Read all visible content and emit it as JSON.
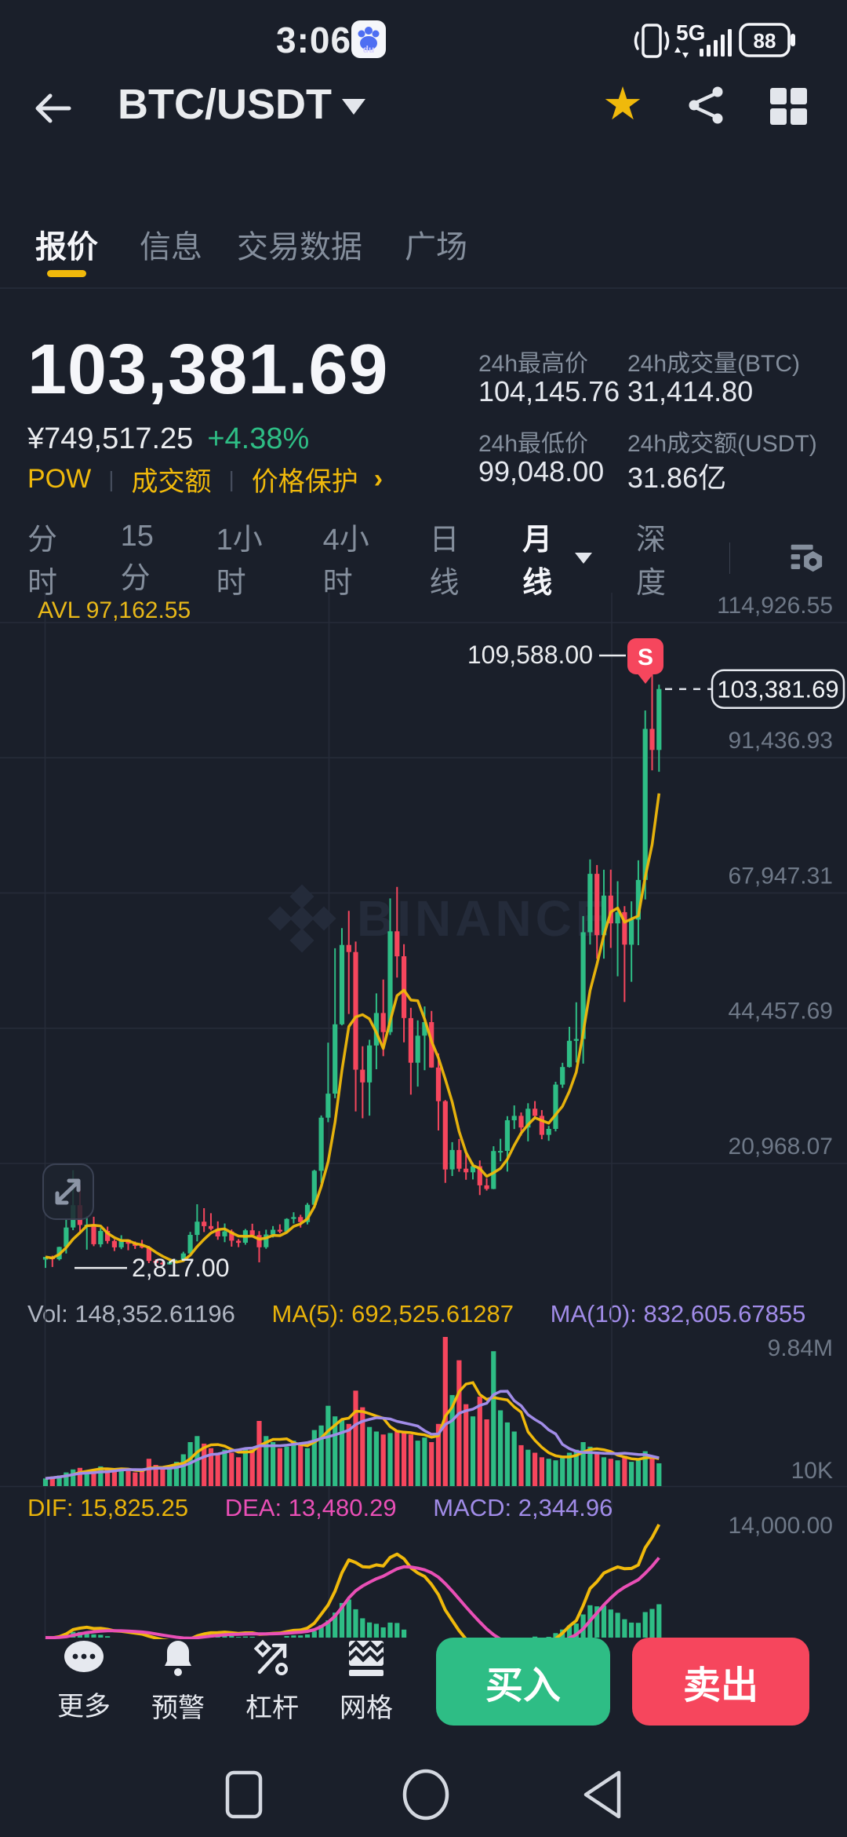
{
  "colors": {
    "background": "#1A1F2A",
    "up_green": "#2EBD85",
    "down_red": "#F6465D",
    "accent_gold": "#F0B90B",
    "text_primary": "#EAECEF",
    "text_secondary": "#848E9C",
    "vol_ma10_purple": "#A18CE8",
    "dea_magenta": "#E94FB6",
    "watermark": "#242B3A"
  },
  "status_bar": {
    "time": "3:06",
    "network": "5G",
    "battery": "88"
  },
  "header": {
    "pair": "BTC/USDT"
  },
  "tabs": {
    "items": [
      {
        "label": "报价"
      },
      {
        "label": "信息"
      },
      {
        "label": "交易数据"
      },
      {
        "label": "广场"
      }
    ]
  },
  "ticker": {
    "last": "103,381.69",
    "fiat": "¥749,517.25",
    "change": "+4.38%",
    "tags": [
      "POW",
      "成交额",
      "价格保护"
    ],
    "chevron": "›"
  },
  "stats": {
    "high_label": "24h最高价",
    "high": "104,145.76",
    "vol_btc_label": "24h成交量(BTC)",
    "vol_btc": "31,414.80",
    "low_label": "24h最低价",
    "low": "99,048.00",
    "vol_usdt_label": "24h成交额(USDT)",
    "vol_usdt": "31.86亿"
  },
  "periods": {
    "items": [
      "分时",
      "15分",
      "1小时",
      "4小时",
      "日线",
      "月线",
      "深度"
    ],
    "active": "月线"
  },
  "chart": {
    "avl": "AVL 97,162.55",
    "y_axis": [
      "114,926.55",
      "91,436.93",
      "67,947.31",
      "44,457.69",
      "20,968.07"
    ],
    "high_note": "109,588.00",
    "price_note": "103,381.69",
    "low_note": "2,817.00",
    "sell_marker": "S",
    "watermark": "BINANCE"
  },
  "volume_pane": {
    "legend": [
      "Vol: 148,352.61196",
      "MA(5): 692,525.61287",
      "MA(10): 832,605.67855"
    ],
    "y_max": "9.84M",
    "y_min": "10K"
  },
  "macd_pane": {
    "legend": [
      "DIF: 15,825.25",
      "DEA: 13,480.29",
      "MACD: 2,344.96"
    ],
    "y_label": "14,000.00"
  },
  "footer": {
    "actions": [
      {
        "label": "更多"
      },
      {
        "label": "预警"
      },
      {
        "label": "杠杆"
      },
      {
        "label": "网格"
      }
    ],
    "buy": "买入",
    "sell": "卖出"
  },
  "chart_data": {
    "type": "candlestick",
    "interval": "monthly",
    "title": "BTC/USDT 月线",
    "y_axis_labels": [
      114926.55,
      91436.93,
      67947.31,
      44457.69,
      20968.07
    ],
    "marked_high": 109588.0,
    "marked_low": 2817.0,
    "last_price": 103381.69,
    "candles": [
      [
        4261,
        4745,
        2817,
        4724
      ],
      [
        4724,
        4939,
        2975,
        4338
      ],
      [
        4341,
        6498,
        4110,
        6463
      ],
      [
        6463,
        11300,
        5325,
        9838
      ],
      [
        9837,
        19799,
        9380,
        13716
      ],
      [
        13715,
        17176,
        9035,
        10285
      ],
      [
        10285,
        11786,
        6000,
        10326
      ],
      [
        10325,
        11710,
        6600,
        6923
      ],
      [
        6922,
        9759,
        6430,
        9246
      ],
      [
        9246,
        9990,
        7032,
        7494
      ],
      [
        7494,
        7786,
        5750,
        6390
      ],
      [
        6391,
        8491,
        6070,
        7735
      ],
      [
        7735,
        7760,
        5880,
        7011
      ],
      [
        7011,
        7410,
        6111,
        6626
      ],
      [
        6626,
        7680,
        6205,
        6371
      ],
      [
        6369,
        6615,
        3652,
        4041
      ],
      [
        4041,
        4312,
        3156,
        3702
      ],
      [
        3701,
        4069,
        3349,
        3434
      ],
      [
        3434,
        4190,
        3373,
        3813
      ],
      [
        3814,
        4236,
        3656,
        4095
      ],
      [
        4095,
        5627,
        4052,
        5320
      ],
      [
        5321,
        9074,
        5316,
        8555
      ],
      [
        8555,
        13880,
        7432,
        10854
      ],
      [
        10854,
        13200,
        9049,
        10080
      ],
      [
        10080,
        12325,
        9321,
        9594
      ],
      [
        9594,
        10898,
        7700,
        8290
      ],
      [
        8290,
        10540,
        7293,
        9152
      ],
      [
        9152,
        9505,
        6515,
        7541
      ],
      [
        7541,
        7833,
        6427,
        7193
      ],
      [
        7194,
        9578,
        6850,
        9350
      ],
      [
        9350,
        10500,
        8407,
        8523
      ],
      [
        8523,
        9219,
        3782,
        6410
      ],
      [
        6410,
        9460,
        6150,
        8620
      ],
      [
        8620,
        10080,
        8100,
        9448
      ],
      [
        9448,
        10380,
        8830,
        9138
      ],
      [
        9138,
        11450,
        8900,
        11323
      ],
      [
        11323,
        12486,
        10517,
        11649
      ],
      [
        11649,
        12050,
        9825,
        10776
      ],
      [
        10776,
        14100,
        10374,
        13781
      ],
      [
        13781,
        19863,
        13195,
        19695
      ],
      [
        19695,
        29300,
        17572,
        28923
      ],
      [
        28923,
        41950,
        28130,
        33092
      ],
      [
        33092,
        58352,
        32296,
        45135
      ],
      [
        45134,
        61844,
        44950,
        58918
      ],
      [
        58918,
        64854,
        46930,
        57697
      ],
      [
        57697,
        59500,
        30000,
        37253
      ],
      [
        37253,
        41330,
        28805,
        35040
      ],
      [
        35040,
        42448,
        29278,
        41461
      ],
      [
        41461,
        50500,
        37332,
        47100
      ],
      [
        47100,
        52920,
        39600,
        43790
      ],
      [
        43790,
        67000,
        43283,
        61299
      ],
      [
        61299,
        69000,
        53245,
        56950
      ],
      [
        56950,
        59053,
        42000,
        46216
      ],
      [
        46216,
        47990,
        32917,
        38466
      ],
      [
        38466,
        45821,
        34322,
        43160
      ],
      [
        43160,
        48240,
        37155,
        45510
      ],
      [
        45510,
        47448,
        37585,
        37630
      ],
      [
        37630,
        40070,
        26700,
        31784
      ],
      [
        31784,
        31980,
        17593,
        19924
      ],
      [
        19924,
        24668,
        18781,
        23293
      ],
      [
        23293,
        25211,
        19520,
        20048
      ],
      [
        20048,
        22799,
        18125,
        19424
      ],
      [
        19424,
        21085,
        18190,
        20490
      ],
      [
        20490,
        21480,
        15476,
        17163
      ],
      [
        17163,
        18385,
        16256,
        16537
      ],
      [
        16537,
        23960,
        16499,
        23125
      ],
      [
        23125,
        25250,
        21351,
        23141
      ],
      [
        23141,
        29184,
        19549,
        28465
      ],
      [
        28465,
        31050,
        26942,
        29233
      ],
      [
        29233,
        29820,
        25810,
        27210
      ],
      [
        27210,
        31430,
        24797,
        30472
      ],
      [
        30472,
        31800,
        28855,
        29230
      ],
      [
        29230,
        30230,
        25166,
        25931
      ],
      [
        25931,
        27480,
        24900,
        26962
      ],
      [
        26962,
        35150,
        26538,
        34656
      ],
      [
        34656,
        38450,
        34100,
        37712
      ],
      [
        37712,
        44700,
        37615,
        42265
      ],
      [
        42265,
        48969,
        38501,
        42580
      ],
      [
        42580,
        63933,
        38300,
        61130
      ],
      [
        61130,
        73777,
        59005,
        71280
      ],
      [
        71280,
        72797,
        56500,
        60636
      ],
      [
        60636,
        71979,
        56552,
        67491
      ],
      [
        67491,
        71997,
        58402,
        62668
      ],
      [
        62668,
        69987,
        53485,
        64619
      ],
      [
        64619,
        65659,
        49000,
        58969
      ],
      [
        58969,
        66500,
        52530,
        63329
      ],
      [
        63329,
        73620,
        58872,
        70215
      ],
      [
        70215,
        99655,
        66835,
        96449
      ],
      [
        96449,
        109588,
        89256,
        92800
      ],
      [
        92800,
        104145.76,
        89000,
        103381.69
      ]
    ],
    "volumes_millions": [
      0.5,
      0.6,
      0.7,
      0.9,
      1.1,
      1.2,
      1.0,
      1.1,
      1.3,
      1.1,
      1.0,
      1.2,
      1.0,
      0.9,
      1.0,
      1.8,
      1.4,
      1.1,
      1.3,
      1.6,
      2.1,
      2.9,
      3.3,
      2.8,
      2.5,
      2.2,
      2.4,
      2.2,
      1.9,
      2.5,
      2.4,
      4.3,
      3.3,
      2.9,
      2.5,
      2.6,
      3.0,
      2.7,
      2.5,
      3.7,
      4.0,
      5.3,
      4.6,
      4.4,
      4.1,
      6.3,
      5.2,
      3.9,
      3.6,
      3.4,
      3.5,
      3.7,
      3.6,
      3.4,
      3.0,
      3.2,
      2.9,
      4.1,
      9.84,
      6.0,
      8.3,
      5.4,
      4.6,
      5.9,
      4.4,
      8.9,
      5.0,
      4.2,
      3.6,
      2.7,
      2.4,
      2.2,
      1.9,
      1.8,
      1.7,
      2.0,
      2.2,
      2.4,
      2.9,
      2.6,
      2.2,
      1.9,
      1.8,
      1.7,
      2.0,
      1.6,
      1.7,
      2.3,
      1.9,
      1.5
    ],
    "volume_axis_max_label": "9.84M",
    "volume_axis_min_label": "10K",
    "macd_axis_label": 14000.0,
    "overlays": {
      "price_ma": "MA(5)",
      "volume_ma": [
        "MA(5)",
        "MA(10)"
      ],
      "lower_indicator": "MACD(DIF,DEA)"
    }
  }
}
